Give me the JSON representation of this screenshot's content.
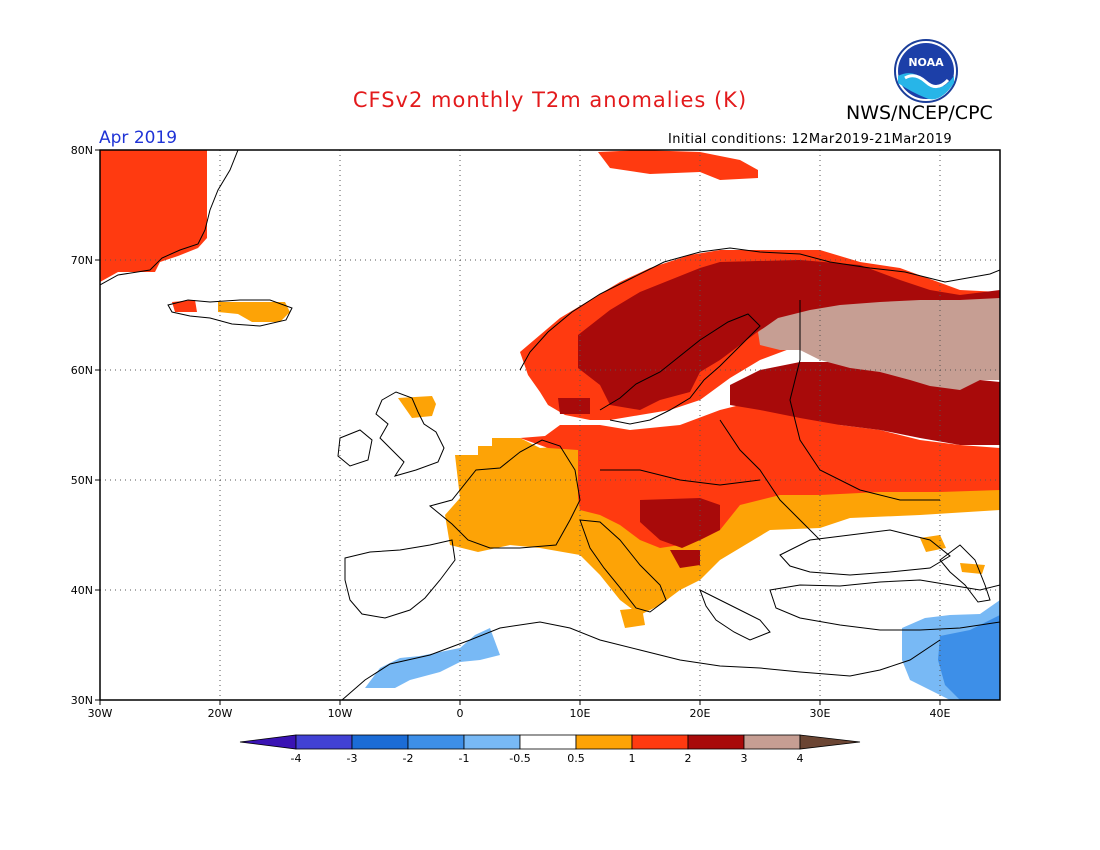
{
  "header": {
    "title": "CFSv2 monthly T2m anomalies (K)",
    "agency": "NWS/NCEP/CPC",
    "logo_text": "NOAA",
    "month": "Apr 2019",
    "initial_conditions": "Initial conditions: 12Mar2019-21Mar2019"
  },
  "map": {
    "lon_range": [
      -30,
      45
    ],
    "lat_range": [
      30,
      80
    ],
    "lat_labels": [
      "80N",
      "70N",
      "60N",
      "50N",
      "40N",
      "30N"
    ],
    "lon_labels": [
      "30W",
      "20W",
      "10W",
      "0",
      "10E",
      "20E",
      "30E",
      "40E"
    ],
    "grid": "dotted"
  },
  "colorbar": {
    "labels": [
      "-4",
      "-3",
      "-2",
      "-1",
      "-0.5",
      "0.5",
      "1",
      "2",
      "3",
      "4"
    ],
    "colors": [
      "#3a13b4",
      "#4141d4",
      "#1b6cd6",
      "#3d8fe8",
      "#78b9f5",
      "#ffffff",
      "#fda306",
      "#ff3a10",
      "#a80a0a",
      "#c69e93",
      "#6b4533"
    ]
  },
  "anomaly_palette": {
    "neg2": "#3d8fe8",
    "neg1": "#78b9f5",
    "pos05": "#fda306",
    "pos1": "#ff3a10",
    "pos2": "#a80a0a",
    "pos3": "#c69e93"
  }
}
